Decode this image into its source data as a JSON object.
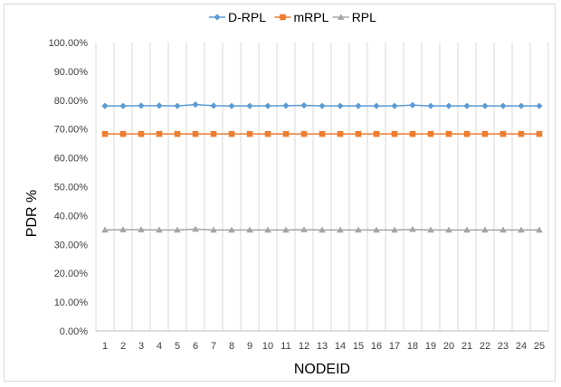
{
  "chart_data": {
    "type": "line",
    "xlabel": "NODEID",
    "ylabel": "PDR %",
    "categories": [
      "1",
      "2",
      "3",
      "4",
      "5",
      "6",
      "7",
      "8",
      "9",
      "10",
      "11",
      "12",
      "13",
      "14",
      "15",
      "16",
      "17",
      "18",
      "19",
      "20",
      "21",
      "22",
      "23",
      "24",
      "25"
    ],
    "yticks": [
      "0.00%",
      "10.00%",
      "20.00%",
      "30.00%",
      "40.00%",
      "50.00%",
      "60.00%",
      "70.00%",
      "80.00%",
      "90.00%",
      "100.00%"
    ],
    "ylim": [
      0,
      100
    ],
    "grid": "vertical",
    "legend_position": "top",
    "series": [
      {
        "name": "D-RPL",
        "color": "#5B9BD5",
        "marker": "diamond",
        "values": [
          78.0,
          78.0,
          78.1,
          78.1,
          78.0,
          78.5,
          78.1,
          78.0,
          78.0,
          78.0,
          78.1,
          78.2,
          78.0,
          78.0,
          78.0,
          78.0,
          78.0,
          78.3,
          78.0,
          78.0,
          78.0,
          78.0,
          78.0,
          78.0,
          78.0
        ]
      },
      {
        "name": "mRPL",
        "color": "#ED7D31",
        "marker": "square",
        "values": [
          68.3,
          68.3,
          68.3,
          68.3,
          68.3,
          68.3,
          68.3,
          68.3,
          68.3,
          68.3,
          68.3,
          68.3,
          68.3,
          68.3,
          68.3,
          68.3,
          68.3,
          68.3,
          68.3,
          68.3,
          68.3,
          68.3,
          68.3,
          68.3,
          68.3
        ]
      },
      {
        "name": "RPL",
        "color": "#A5A5A5",
        "marker": "triangle",
        "values": [
          35.0,
          35.1,
          35.1,
          35.0,
          35.0,
          35.3,
          35.0,
          35.0,
          35.0,
          35.0,
          35.0,
          35.1,
          35.0,
          35.0,
          35.0,
          35.0,
          35.0,
          35.2,
          35.0,
          35.0,
          35.0,
          35.0,
          35.0,
          35.0,
          35.0
        ]
      }
    ]
  }
}
